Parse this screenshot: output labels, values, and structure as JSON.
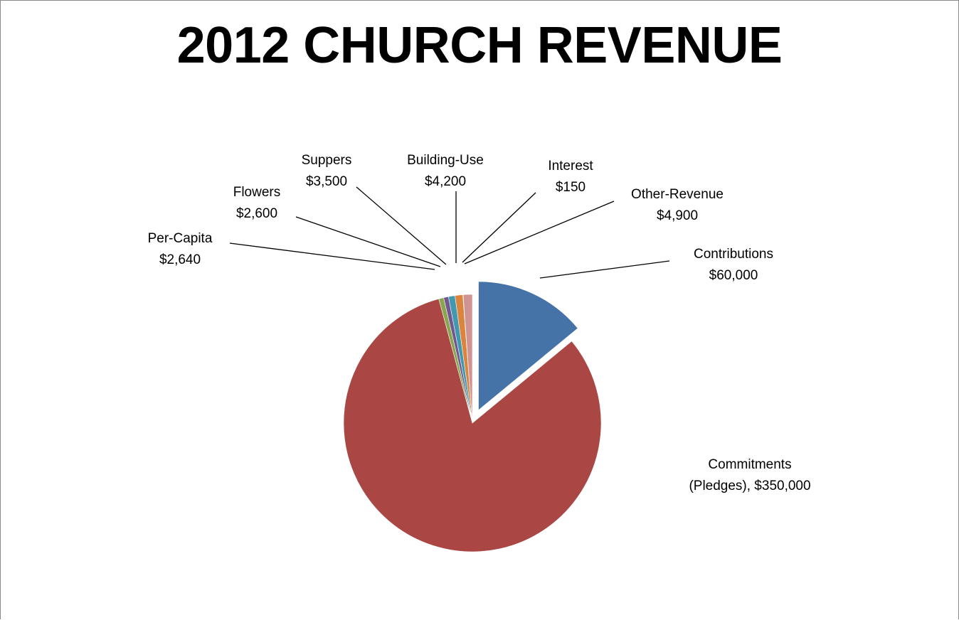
{
  "chart_data": {
    "type": "pie",
    "title": "2012 CHURCH REVENUE",
    "slices": [
      {
        "name": "Contributions",
        "value": 60000,
        "value_label": "$60,000",
        "color": "#4572a7",
        "exploded": true
      },
      {
        "name": "Commitments (Pledges)",
        "value": 350000,
        "value_label": "$350,000",
        "color": "#aa4643"
      },
      {
        "name": "Per-Capita",
        "value": 2640,
        "value_label": "$2,640",
        "color": "#89a54e"
      },
      {
        "name": "Flowers",
        "value": 2600,
        "value_label": "$2,600",
        "color": "#71588f"
      },
      {
        "name": "Suppers",
        "value": 3500,
        "value_label": "$3,500",
        "color": "#4198af"
      },
      {
        "name": "Building-Use",
        "value": 4200,
        "value_label": "$4,200",
        "color": "#db843d"
      },
      {
        "name": "Interest",
        "value": 150,
        "value_label": "$150",
        "color": "#93a9cf"
      },
      {
        "name": "Other-Revenue",
        "value": 4900,
        "value_label": "$4,900",
        "color": "#d19392"
      }
    ],
    "labels": [
      {
        "slice": 0,
        "lines": [
          "Contributions",
          "$60,000"
        ]
      },
      {
        "slice": 1,
        "lines": [
          "Commitments",
          "(Pledges), $350,000"
        ]
      },
      {
        "slice": 2,
        "lines": [
          "Per-Capita",
          "$2,640"
        ]
      },
      {
        "slice": 3,
        "lines": [
          "Flowers",
          "$2,600"
        ]
      },
      {
        "slice": 4,
        "lines": [
          "Suppers",
          "$3,500"
        ]
      },
      {
        "slice": 5,
        "lines": [
          "Building-Use",
          "$4,200"
        ]
      },
      {
        "slice": 6,
        "lines": [
          "Interest",
          "$150"
        ]
      },
      {
        "slice": 7,
        "lines": [
          "Other-Revenue",
          "$4,900"
        ]
      }
    ],
    "legend": "none"
  }
}
